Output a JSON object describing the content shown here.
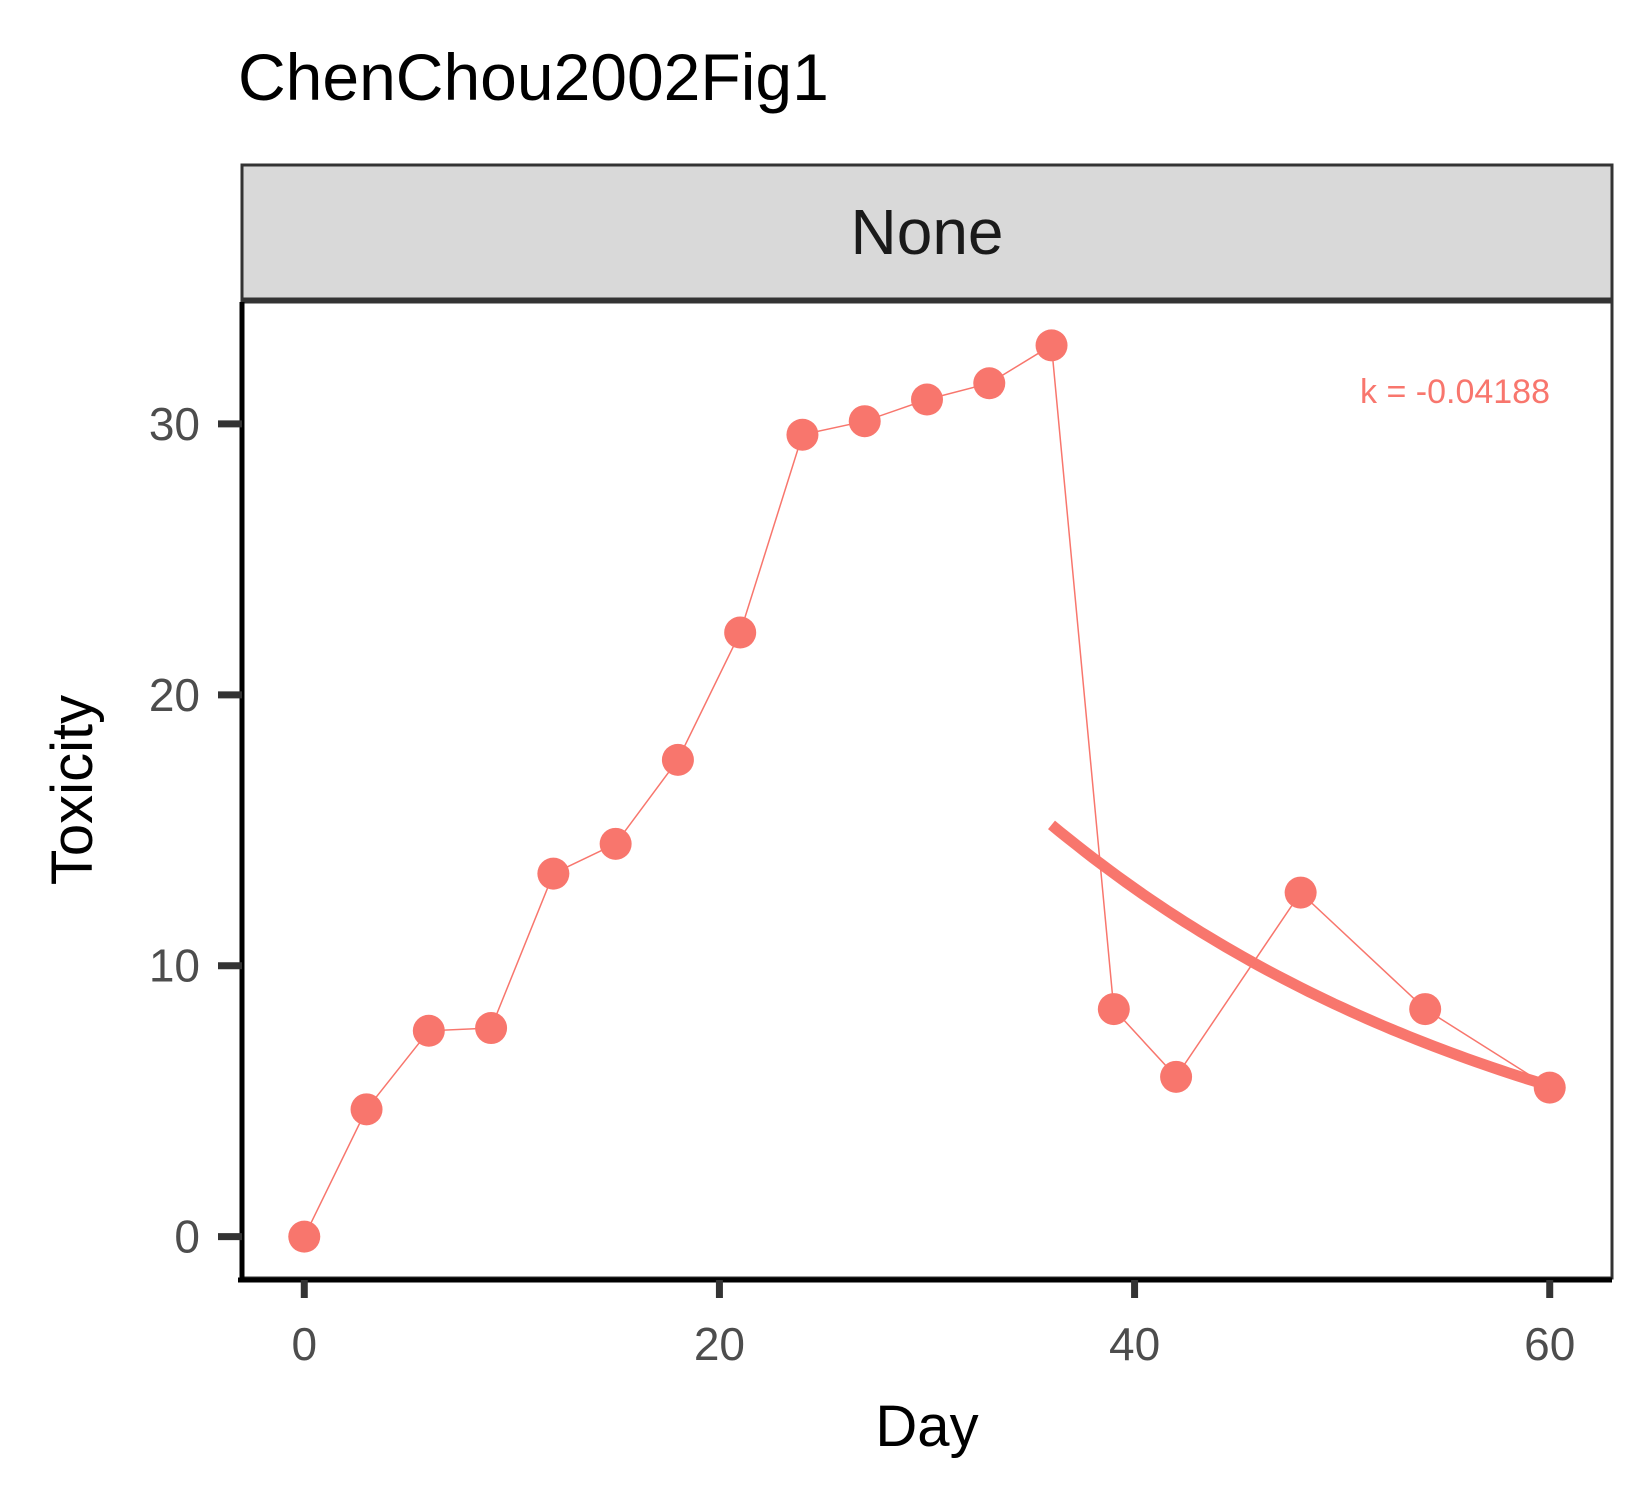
{
  "colors": {
    "series": "#f8766d",
    "strip_bg": "#d9d9d9",
    "strip_border": "#333333",
    "axis": "#333333"
  },
  "chart_data": {
    "type": "line",
    "title": "ChenChou2002Fig1",
    "facet": "None",
    "xlabel": "Day",
    "ylabel": "Toxicity",
    "xlim": [
      -3,
      63
    ],
    "ylim": [
      -1.6,
      34.5
    ],
    "x_ticks": [
      0,
      20,
      40,
      60
    ],
    "y_ticks": [
      0,
      10,
      20,
      30
    ],
    "grid": false,
    "legend": "none",
    "series": [
      {
        "points": [
          [
            0,
            0.0
          ],
          [
            3,
            4.7
          ],
          [
            6,
            7.6
          ],
          [
            9,
            7.7
          ],
          [
            12,
            13.4
          ],
          [
            15,
            14.5
          ],
          [
            18,
            17.6
          ],
          [
            21,
            22.3
          ],
          [
            24,
            29.6
          ],
          [
            27,
            30.1
          ],
          [
            30,
            30.9
          ],
          [
            33,
            31.5
          ],
          [
            36,
            32.9
          ],
          [
            39,
            8.4
          ],
          [
            42,
            5.9
          ],
          [
            48,
            12.7
          ],
          [
            54,
            8.4
          ],
          [
            60,
            5.5
          ]
        ]
      }
    ],
    "fit": {
      "x_range": [
        36,
        60
      ],
      "start_value": 15.2,
      "k": -0.04188,
      "label": "k = -0.04188"
    }
  }
}
